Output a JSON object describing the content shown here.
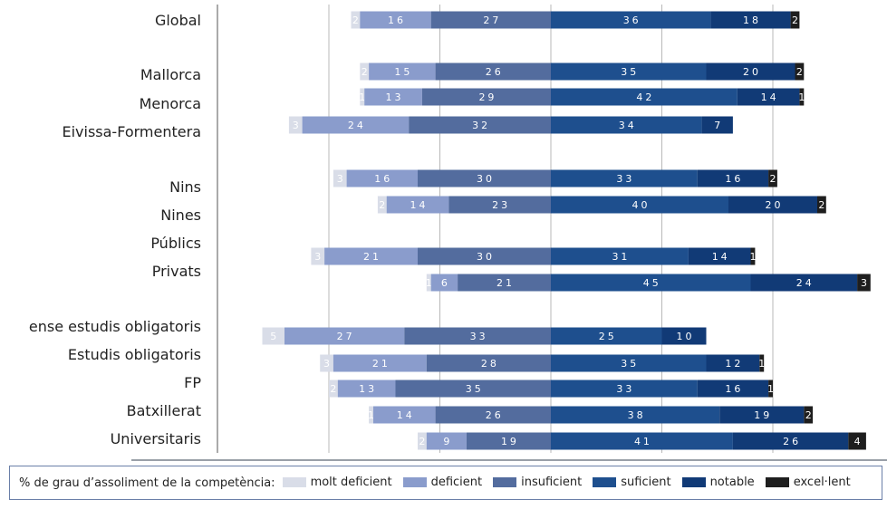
{
  "chart_data": {
    "type": "bar",
    "stacked": true,
    "diverging": true,
    "legend_title": "% de grau d’assoliment de la competència:",
    "legend_placement": "bottom",
    "series": [
      {
        "name": "molt deficient",
        "color": "#d9dde8"
      },
      {
        "name": "deficient",
        "color": "#8a9ccc"
      },
      {
        "name": "insuficient",
        "color": "#536c9e"
      },
      {
        "name": "suficient",
        "color": "#1e4f8e"
      },
      {
        "name": "notable",
        "color": "#113a76"
      },
      {
        "name": "excel·lent",
        "color": "#1e1e1e"
      }
    ],
    "rows": [
      {
        "label": "Global",
        "values": [
          2,
          16,
          27,
          36,
          18,
          2
        ]
      },
      {
        "label": "Mallorca",
        "values": [
          2,
          15,
          26,
          35,
          20,
          2
        ]
      },
      {
        "label": "Menorca",
        "values": [
          1,
          13,
          29,
          42,
          14,
          1
        ]
      },
      {
        "label": "Eivissa-Formentera",
        "values": [
          3,
          24,
          32,
          34,
          7,
          0
        ]
      },
      {
        "label": "Nins",
        "values": [
          3,
          16,
          30,
          33,
          16,
          2
        ]
      },
      {
        "label": "Nines",
        "values": [
          2,
          14,
          23,
          40,
          20,
          2
        ]
      },
      {
        "label": "Públics",
        "values": [
          3,
          21,
          30,
          31,
          14,
          1
        ]
      },
      {
        "label": "Privats",
        "values": [
          1,
          6,
          21,
          45,
          24,
          3
        ]
      },
      {
        "label": "ense estudis obligatoris",
        "values": [
          5,
          27,
          33,
          25,
          10,
          0
        ]
      },
      {
        "label": "Estudis obligatoris",
        "values": [
          3,
          21,
          28,
          35,
          12,
          1
        ]
      },
      {
        "label": "FP",
        "values": [
          2,
          13,
          35,
          33,
          16,
          1
        ]
      },
      {
        "label": "Batxillerat",
        "values": [
          1,
          14,
          26,
          38,
          19,
          2
        ]
      },
      {
        "label": "Universitaris",
        "values": [
          2,
          9,
          19,
          41,
          26,
          4
        ]
      }
    ],
    "row_labels_placement": [
      "Global",
      "",
      "Mallorca",
      "Menorca",
      "Eivissa-Formentera",
      "",
      "Nins",
      "Nines",
      "Públics",
      "Privats",
      "",
      "ense estudis obligatoris",
      "Estudis obligatoris",
      "FP",
      "Batxillerat",
      "Universitaris"
    ],
    "xlim": [
      -75,
      75
    ],
    "grid": true
  }
}
